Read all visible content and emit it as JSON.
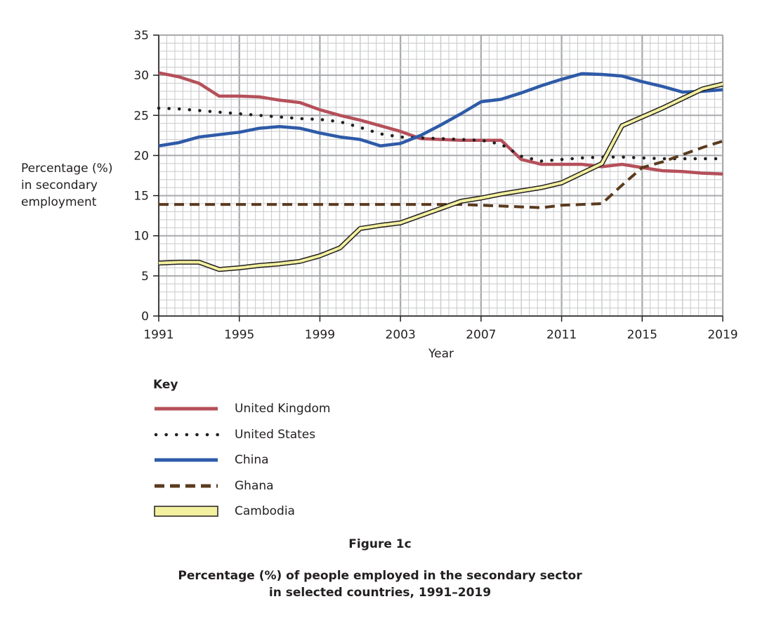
{
  "chart_data": {
    "type": "line",
    "title": "Figure 1c",
    "subtitle": "Percentage (%) of people employed in the secondary sector\nin selected countries, 1991–2019",
    "xlabel": "Year",
    "ylabel": "Percentage (%)\nin secondary\nemployment",
    "xlim": [
      1991,
      2019
    ],
    "ylim": [
      0,
      35
    ],
    "x_ticks": [
      1991,
      1995,
      1999,
      2003,
      2007,
      2011,
      2015,
      2019
    ],
    "y_ticks": [
      0,
      5,
      10,
      15,
      20,
      25,
      30,
      35
    ],
    "grid": true,
    "legend_title": "Key",
    "legend_placement": "below",
    "x": [
      1991,
      1992,
      1993,
      1994,
      1995,
      1996,
      1997,
      1998,
      1999,
      2000,
      2001,
      2002,
      2003,
      2004,
      2005,
      2006,
      2007,
      2008,
      2009,
      2010,
      2011,
      2012,
      2013,
      2014,
      2015,
      2016,
      2017,
      2018,
      2019
    ],
    "series": [
      {
        "name": "United Kingdom",
        "style": "solid",
        "color": "#b5505a",
        "values": [
          30.3,
          29.8,
          29.0,
          27.4,
          27.4,
          27.3,
          26.9,
          26.6,
          25.7,
          25.0,
          24.4,
          23.7,
          23.0,
          22.1,
          22.0,
          21.9,
          21.9,
          21.9,
          19.5,
          18.9,
          18.9,
          18.9,
          18.6,
          18.9,
          18.5,
          18.1,
          18.0,
          17.8,
          17.7
        ]
      },
      {
        "name": "United States",
        "style": "dotted",
        "color": "#231f20",
        "values": [
          25.9,
          25.8,
          25.6,
          25.4,
          25.2,
          25.0,
          24.8,
          24.6,
          24.5,
          24.2,
          23.5,
          22.7,
          22.3,
          22.2,
          22.1,
          22.0,
          21.9,
          21.4,
          19.9,
          19.3,
          19.5,
          19.7,
          19.8,
          19.8,
          19.7,
          19.6,
          19.6,
          19.6,
          19.6
        ]
      },
      {
        "name": "China",
        "style": "solid",
        "color": "#2e5aa8",
        "values": [
          21.2,
          21.6,
          22.3,
          22.6,
          22.9,
          23.4,
          23.6,
          23.4,
          22.8,
          22.3,
          22.0,
          21.2,
          21.5,
          22.5,
          23.8,
          25.2,
          26.7,
          27.0,
          27.8,
          28.7,
          29.5,
          30.2,
          30.1,
          29.9,
          29.2,
          28.6,
          27.9,
          28.0,
          28.2
        ]
      },
      {
        "name": "Ghana",
        "style": "dashed",
        "color": "#5a3a1e",
        "values": [
          13.9,
          13.9,
          13.9,
          13.9,
          13.9,
          13.9,
          13.9,
          13.9,
          13.9,
          13.9,
          13.9,
          13.9,
          13.9,
          13.9,
          13.9,
          13.9,
          13.8,
          13.7,
          13.6,
          13.5,
          13.8,
          13.9,
          14.0,
          16.3,
          18.5,
          19.2,
          20.1,
          21.0,
          21.8
        ]
      },
      {
        "name": "Cambodia",
        "style": "double",
        "color": "#f3f0a0",
        "values": [
          6.6,
          6.7,
          6.7,
          5.8,
          6.0,
          6.3,
          6.5,
          6.8,
          7.5,
          8.5,
          10.9,
          11.3,
          11.6,
          12.5,
          13.4,
          14.3,
          14.7,
          15.2,
          15.6,
          16.0,
          16.6,
          17.8,
          19.0,
          23.7,
          24.8,
          25.9,
          27.1,
          28.3,
          28.9
        ]
      }
    ]
  }
}
